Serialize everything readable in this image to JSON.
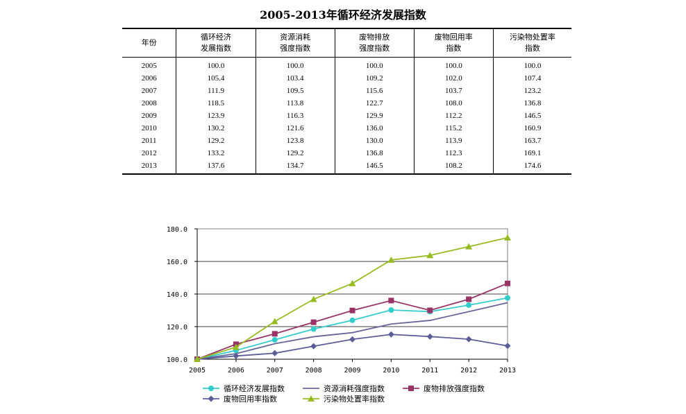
{
  "title": "2005-2013年循环经济发展指数",
  "table": {
    "headers": [
      {
        "line1": "年份",
        "line2": ""
      },
      {
        "line1": "循环经济",
        "line2": "发展指数"
      },
      {
        "line1": "资源消耗",
        "line2": "强度指数"
      },
      {
        "line1": "废物排放",
        "line2": "强度指数"
      },
      {
        "line1": "废物回用率",
        "line2": "指数"
      },
      {
        "line1": "污染物处置率",
        "line2": "指数"
      }
    ],
    "rows": [
      [
        "2005",
        "100.0",
        "100.0",
        "100.0",
        "100.0",
        "100.0"
      ],
      [
        "2006",
        "105.4",
        "103.4",
        "109.2",
        "102.0",
        "107.4"
      ],
      [
        "2007",
        "111.9",
        "109.5",
        "115.6",
        "103.7",
        "123.2"
      ],
      [
        "2008",
        "118.5",
        "113.8",
        "122.7",
        "108.0",
        "136.8"
      ],
      [
        "2009",
        "123.9",
        "116.3",
        "129.9",
        "112.2",
        "146.5"
      ],
      [
        "2010",
        "130.2",
        "121.6",
        "136.0",
        "115.2",
        "160.9"
      ],
      [
        "2011",
        "129.2",
        "123.8",
        "130.0",
        "113.9",
        "163.7"
      ],
      [
        "2012",
        "133.2",
        "129.2",
        "136.8",
        "112.3",
        "169.1"
      ],
      [
        "2013",
        "137.6",
        "134.7",
        "146.5",
        "108.2",
        "174.6"
      ]
    ]
  },
  "chart_data": {
    "type": "line",
    "title": "",
    "xlabel": "",
    "ylabel": "",
    "x": [
      "2005",
      "2006",
      "2007",
      "2008",
      "2009",
      "2010",
      "2011",
      "2012",
      "2013"
    ],
    "ylim": [
      100,
      180
    ],
    "yticks": [
      "100.0",
      "120.0",
      "140.0",
      "160.0",
      "180.0"
    ],
    "ytick_values": [
      100,
      120,
      140,
      160,
      180
    ],
    "grid": "horizontal",
    "legend_position": "bottom",
    "series": [
      {
        "name": "循环经济发展指数",
        "color": "#33cccc",
        "marker": "circle",
        "values": [
          100.0,
          105.4,
          111.9,
          118.5,
          123.9,
          130.2,
          129.2,
          133.2,
          137.6
        ]
      },
      {
        "name": "资源消耗强度指数",
        "color": "#666699",
        "marker": "none",
        "values": [
          100.0,
          103.4,
          109.5,
          113.8,
          116.3,
          121.6,
          123.8,
          129.2,
          134.7
        ]
      },
      {
        "name": "废物排放强度指数",
        "color": "#993366",
        "marker": "square",
        "values": [
          100.0,
          109.2,
          115.6,
          122.7,
          129.9,
          136.0,
          130.0,
          136.8,
          146.5
        ]
      },
      {
        "name": "废物回用率指数",
        "color": "#5c5c99",
        "marker": "diamond",
        "values": [
          100.0,
          102.0,
          103.7,
          108.0,
          112.2,
          115.2,
          113.9,
          112.3,
          108.2
        ]
      },
      {
        "name": "污染物处置率指数",
        "color": "#99bb22",
        "marker": "triangle",
        "values": [
          100.0,
          107.4,
          123.2,
          136.8,
          146.5,
          160.9,
          163.7,
          169.1,
          174.6
        ]
      }
    ]
  }
}
